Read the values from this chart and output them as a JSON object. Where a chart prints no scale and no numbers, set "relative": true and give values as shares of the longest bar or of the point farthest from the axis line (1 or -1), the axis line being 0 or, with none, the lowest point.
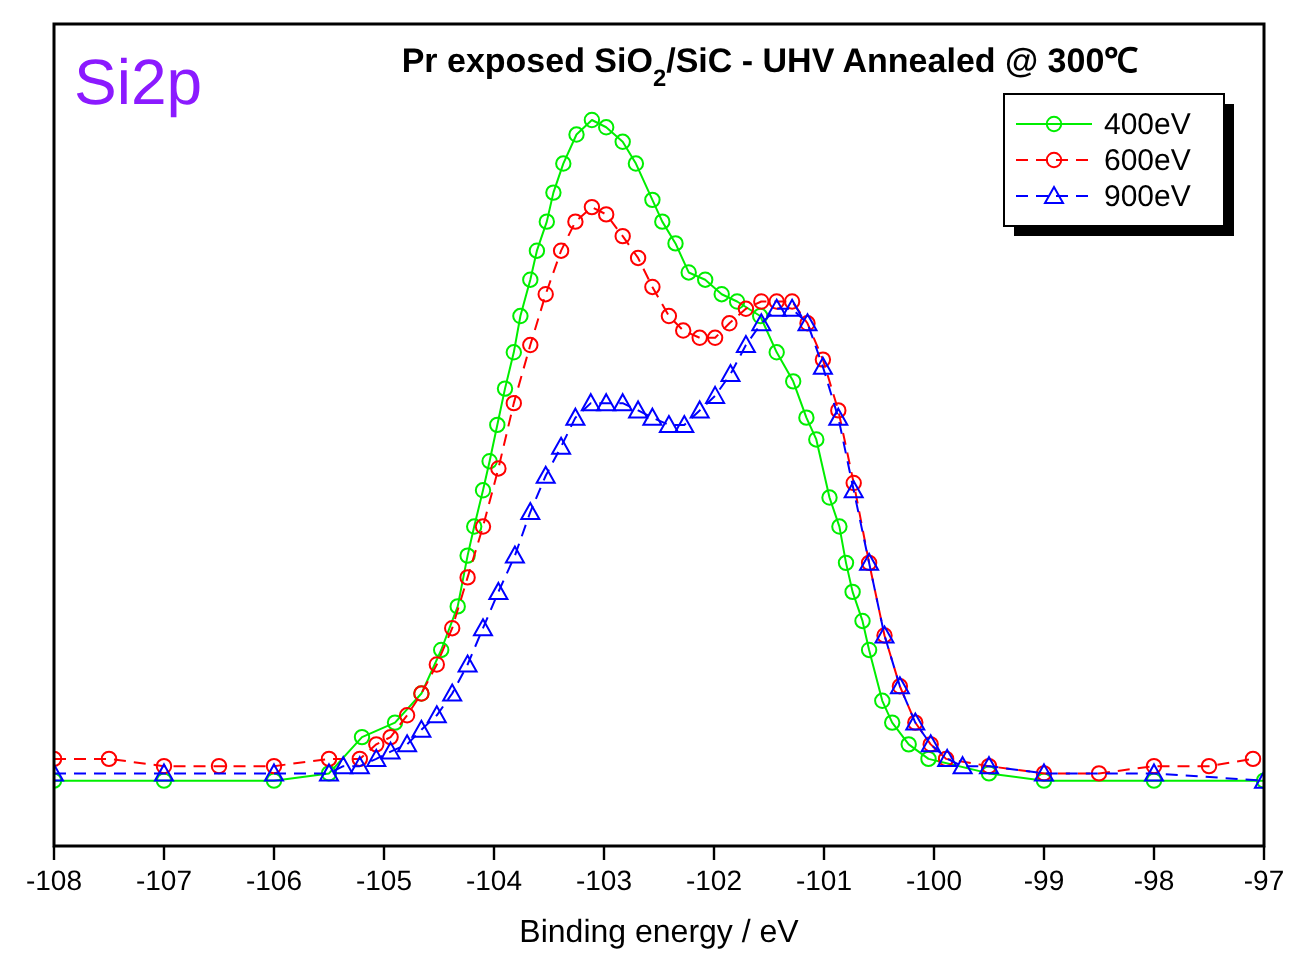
{
  "chart_data": {
    "type": "line",
    "title": "Pr exposed SiO$_{2}$/SiC - UHV Annealed @ 300℃",
    "xlabel": "Binding energy / eV",
    "annotations": [
      "Si2p"
    ],
    "relative": true,
    "xlim": [
      -108,
      -97
    ],
    "xticks": [
      -108,
      -107,
      -106,
      -105,
      -104,
      -103,
      -102,
      -101,
      -100,
      -99,
      -98,
      -97
    ],
    "legend": "top right",
    "grid": false,
    "series": [
      {
        "name": "400eV",
        "color": "#00ee00",
        "marker": "circle",
        "line_style": "solid",
        "x": [
          -108,
          -107,
          -106,
          -105.5,
          -105.2,
          -104.9,
          -104.66,
          -104.48,
          -104.33,
          -104.24,
          -104.18,
          -104.1,
          -104.04,
          -103.97,
          -103.9,
          -103.82,
          -103.76,
          -103.67,
          -103.61,
          -103.52,
          -103.46,
          -103.37,
          -103.25,
          -103.11,
          -102.98,
          -102.83,
          -102.71,
          -102.56,
          -102.47,
          -102.35,
          -102.23,
          -102.08,
          -101.93,
          -101.79,
          -101.58,
          -101.43,
          -101.28,
          -101.16,
          -101.07,
          -100.95,
          -100.86,
          -100.8,
          -100.74,
          -100.65,
          -100.59,
          -100.47,
          -100.38,
          -100.23,
          -100.05,
          -99.5,
          -99,
          -98,
          -97
        ],
        "values": [
          0.09,
          0.09,
          0.09,
          0.1,
          0.15,
          0.17,
          0.21,
          0.27,
          0.33,
          0.4,
          0.44,
          0.49,
          0.53,
          0.58,
          0.63,
          0.68,
          0.73,
          0.78,
          0.82,
          0.86,
          0.9,
          0.94,
          0.98,
          1,
          0.99,
          0.97,
          0.94,
          0.89,
          0.86,
          0.83,
          0.79,
          0.78,
          0.76,
          0.75,
          0.73,
          0.68,
          0.64,
          0.59,
          0.56,
          0.48,
          0.44,
          0.39,
          0.35,
          0.31,
          0.27,
          0.2,
          0.17,
          0.14,
          0.12,
          0.1,
          0.09,
          0.09,
          0.09
        ]
      },
      {
        "name": "600eV",
        "color": "#ff0000",
        "marker": "circle",
        "line_style": "dashed",
        "x": [
          -108,
          -107.5,
          -107,
          -106.5,
          -106,
          -105.5,
          -105.22,
          -105.07,
          -104.94,
          -104.79,
          -104.66,
          -104.52,
          -104.38,
          -104.24,
          -104.1,
          -103.96,
          -103.82,
          -103.67,
          -103.53,
          -103.39,
          -103.26,
          -103.11,
          -102.98,
          -102.83,
          -102.69,
          -102.56,
          -102.41,
          -102.28,
          -102.13,
          -101.99,
          -101.86,
          -101.71,
          -101.57,
          -101.43,
          -101.29,
          -101.15,
          -101.01,
          -100.87,
          -100.73,
          -100.59,
          -100.45,
          -100.31,
          -100.17,
          -100.03,
          -99.89,
          -99.5,
          -99,
          -98.5,
          -98,
          -97.5,
          -97.1
        ],
        "values": [
          0.12,
          0.12,
          0.11,
          0.11,
          0.11,
          0.12,
          0.12,
          0.14,
          0.15,
          0.18,
          0.21,
          0.25,
          0.3,
          0.37,
          0.44,
          0.52,
          0.61,
          0.69,
          0.76,
          0.82,
          0.86,
          0.88,
          0.87,
          0.84,
          0.81,
          0.77,
          0.73,
          0.71,
          0.7,
          0.7,
          0.72,
          0.74,
          0.75,
          0.75,
          0.75,
          0.72,
          0.67,
          0.6,
          0.5,
          0.39,
          0.29,
          0.22,
          0.17,
          0.14,
          0.12,
          0.11,
          0.1,
          0.1,
          0.11,
          0.11,
          0.12
        ]
      },
      {
        "name": "900eV",
        "color": "#0000ff",
        "marker": "triangle",
        "line_style": "dashed",
        "x": [
          -108,
          -107,
          -106,
          -105.5,
          -105.37,
          -105.22,
          -105.07,
          -104.94,
          -104.79,
          -104.66,
          -104.52,
          -104.38,
          -104.24,
          -104.1,
          -103.96,
          -103.81,
          -103.67,
          -103.53,
          -103.39,
          -103.26,
          -103.12,
          -102.98,
          -102.83,
          -102.69,
          -102.56,
          -102.41,
          -102.27,
          -102.13,
          -101.99,
          -101.85,
          -101.71,
          -101.57,
          -101.43,
          -101.29,
          -101.15,
          -101.01,
          -100.87,
          -100.73,
          -100.59,
          -100.45,
          -100.31,
          -100.17,
          -100.03,
          -99.88,
          -99.74,
          -99.5,
          -99,
          -98,
          -97
        ],
        "values": [
          0.1,
          0.1,
          0.1,
          0.1,
          0.11,
          0.11,
          0.12,
          0.13,
          0.14,
          0.16,
          0.18,
          0.21,
          0.25,
          0.3,
          0.35,
          0.4,
          0.46,
          0.51,
          0.55,
          0.59,
          0.61,
          0.61,
          0.61,
          0.6,
          0.59,
          0.58,
          0.58,
          0.6,
          0.62,
          0.65,
          0.69,
          0.72,
          0.74,
          0.74,
          0.72,
          0.66,
          0.59,
          0.49,
          0.39,
          0.29,
          0.22,
          0.17,
          0.14,
          0.12,
          0.11,
          0.11,
          0.1,
          0.1,
          0.09
        ]
      }
    ]
  }
}
